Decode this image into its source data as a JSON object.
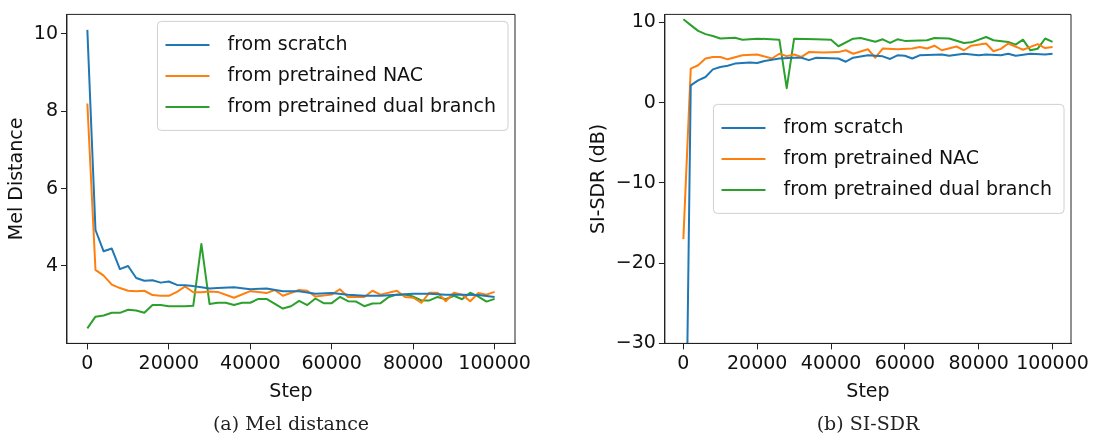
{
  "chart_data": [
    {
      "type": "line",
      "xlabel": "Step",
      "ylabel": "Mel Distance",
      "xlim": [
        -5000,
        105000
      ],
      "xticks": [
        0,
        20000,
        40000,
        60000,
        80000,
        100000
      ],
      "ylim": [
        2.0,
        10.5
      ],
      "yticks": [
        4,
        6,
        8,
        10
      ],
      "grid": false,
      "legend": "top right",
      "marker": "none",
      "line_style": "solid",
      "annotations": [
        "(a) Mel distance"
      ],
      "series": [
        {
          "name": "from scratch",
          "color": "#1f77b4",
          "x": [
            0,
            2000,
            4000,
            6000,
            8000,
            10000,
            12000,
            14000,
            16000,
            18000,
            20000,
            22000,
            24000,
            26000,
            28000,
            30000,
            32000,
            36000,
            40000,
            44000,
            48000,
            52000,
            56000,
            60000,
            64000,
            68000,
            72000,
            76000,
            80000,
            84000,
            88000,
            92000,
            96000,
            100000
          ],
          "values": [
            10.1,
            4.93,
            4.38,
            4.45,
            3.92,
            4.0,
            3.69,
            3.62,
            3.63,
            3.57,
            3.6,
            3.51,
            3.5,
            3.48,
            3.45,
            3.42,
            3.43,
            3.45,
            3.4,
            3.42,
            3.35,
            3.35,
            3.28,
            3.3,
            3.26,
            3.23,
            3.23,
            3.26,
            3.28,
            3.28,
            3.26,
            3.26,
            3.25,
            3.2
          ]
        },
        {
          "name": "from pretrained NAC",
          "color": "#ff7f0e",
          "x": [
            0,
            2000,
            4000,
            6000,
            8000,
            10000,
            12000,
            14000,
            16000,
            18000,
            20000,
            22000,
            24000,
            26000,
            28000,
            30000,
            32000,
            36000,
            40000,
            44000,
            46000,
            48000,
            52000,
            54000,
            56000,
            60000,
            62000,
            64000,
            68000,
            70000,
            72000,
            76000,
            78000,
            80000,
            82000,
            84000,
            86000,
            88000,
            90000,
            92000,
            94000,
            96000,
            98000,
            100000
          ],
          "values": [
            8.2,
            3.9,
            3.75,
            3.52,
            3.43,
            3.36,
            3.35,
            3.36,
            3.25,
            3.23,
            3.23,
            3.33,
            3.47,
            3.32,
            3.32,
            3.34,
            3.33,
            3.18,
            3.35,
            3.3,
            3.38,
            3.23,
            3.38,
            3.36,
            3.21,
            3.26,
            3.4,
            3.2,
            3.2,
            3.36,
            3.26,
            3.36,
            3.2,
            3.18,
            3.05,
            3.31,
            3.31,
            3.09,
            3.31,
            3.26,
            3.09,
            3.3,
            3.26,
            3.33
          ]
        },
        {
          "name": "from pretrained dual branch",
          "color": "#2ca02c",
          "x": [
            0,
            2000,
            4000,
            6000,
            8000,
            10000,
            12000,
            14000,
            16000,
            18000,
            20000,
            24000,
            26000,
            28000,
            30000,
            32000,
            34000,
            36000,
            38000,
            40000,
            42000,
            44000,
            48000,
            50000,
            52000,
            54000,
            56000,
            58000,
            60000,
            62000,
            64000,
            66000,
            68000,
            70000,
            72000,
            74000,
            76000,
            78000,
            80000,
            82000,
            84000,
            86000,
            88000,
            90000,
            92000,
            94000,
            96000,
            98000,
            100000
          ],
          "values": [
            2.39,
            2.69,
            2.72,
            2.79,
            2.79,
            2.87,
            2.85,
            2.79,
            2.99,
            2.99,
            2.96,
            2.96,
            2.97,
            4.57,
            3.02,
            3.05,
            3.05,
            2.99,
            3.05,
            3.05,
            3.15,
            3.15,
            2.9,
            2.96,
            3.1,
            2.99,
            3.16,
            3.04,
            3.04,
            3.2,
            3.09,
            3.08,
            2.96,
            3.03,
            3.04,
            3.2,
            3.26,
            3.26,
            3.21,
            3.11,
            3.11,
            3.2,
            3.14,
            3.23,
            3.14,
            3.31,
            3.21,
            3.08,
            3.15
          ]
        }
      ]
    },
    {
      "type": "line",
      "xlabel": "Step",
      "ylabel": "SI-SDR (dB)",
      "xlim": [
        -5000,
        105000
      ],
      "xticks": [
        0,
        20000,
        40000,
        60000,
        80000,
        100000
      ],
      "ylim": [
        -30,
        11
      ],
      "yticks": [
        -30,
        -20,
        -10,
        0,
        10
      ],
      "grid": false,
      "legend": "center right",
      "marker": "none",
      "line_style": "solid",
      "annotations": [
        "(b) SI-SDR"
      ],
      "series": [
        {
          "name": "from scratch",
          "color": "#1f77b4",
          "x": [
            1100,
            2000,
            4000,
            6000,
            8000,
            10000,
            12000,
            14000,
            18000,
            20000,
            22000,
            26000,
            30000,
            32000,
            34000,
            36000,
            42000,
            44000,
            46000,
            50000,
            54000,
            56000,
            58000,
            60000,
            62000,
            64000,
            70000,
            72000,
            76000,
            80000,
            82000,
            86000,
            88000,
            90000,
            94000,
            98000,
            100000
          ],
          "values": [
            -30,
            2.15,
            2.78,
            3.2,
            4.15,
            4.45,
            4.6,
            4.87,
            5.0,
            4.95,
            5.2,
            5.5,
            5.6,
            5.6,
            5.3,
            5.6,
            5.5,
            5.1,
            5.6,
            5.9,
            5.77,
            5.45,
            5.9,
            5.85,
            5.5,
            5.9,
            6.0,
            5.85,
            6.1,
            5.9,
            6.0,
            5.9,
            6.1,
            5.85,
            6.1,
            6.0,
            6.1
          ]
        },
        {
          "name": "from pretrained NAC",
          "color": "#ff7f0e",
          "x": [
            0,
            2000,
            4000,
            6000,
            8000,
            10000,
            12000,
            16000,
            20000,
            24000,
            26000,
            28000,
            30000,
            32000,
            34000,
            38000,
            42000,
            44000,
            46000,
            50000,
            52000,
            54000,
            58000,
            62000,
            64000,
            66000,
            68000,
            70000,
            74000,
            76000,
            78000,
            82000,
            84000,
            86000,
            88000,
            92000,
            96000,
            98000,
            100000
          ],
          "values": [
            -17,
            4.24,
            4.66,
            5.5,
            5.7,
            5.7,
            5.4,
            5.9,
            6.0,
            5.5,
            6.1,
            5.8,
            6.0,
            5.7,
            6.3,
            6.25,
            6.3,
            6.53,
            6.1,
            6.66,
            5.6,
            6.75,
            6.66,
            6.75,
            6.95,
            6.75,
            7.1,
            6.53,
            7.0,
            6.53,
            7.1,
            7.37,
            6.4,
            6.7,
            7.37,
            6.6,
            7.3,
            6.8,
            6.95
          ]
        },
        {
          "name": "from pretrained dual branch",
          "color": "#2ca02c",
          "x": [
            0,
            2000,
            4000,
            6000,
            8000,
            10000,
            14000,
            16000,
            20000,
            26000,
            28000,
            30000,
            36000,
            40000,
            42000,
            46000,
            48000,
            52000,
            54000,
            56000,
            58000,
            60000,
            66000,
            68000,
            72000,
            76000,
            78000,
            82000,
            84000,
            88000,
            90000,
            92000,
            94000,
            96000,
            98000,
            100000
          ],
          "values": [
            10.4,
            9.66,
            8.95,
            8.54,
            8.3,
            8.0,
            8.1,
            7.85,
            7.98,
            7.85,
            1.8,
            7.98,
            7.9,
            7.85,
            7.03,
            7.98,
            8.05,
            7.6,
            7.9,
            7.44,
            7.9,
            7.7,
            7.78,
            8.05,
            8.0,
            7.44,
            7.52,
            8.18,
            7.78,
            7.57,
            7.24,
            7.85,
            6.52,
            6.73,
            8.0,
            7.57
          ]
        }
      ]
    }
  ]
}
